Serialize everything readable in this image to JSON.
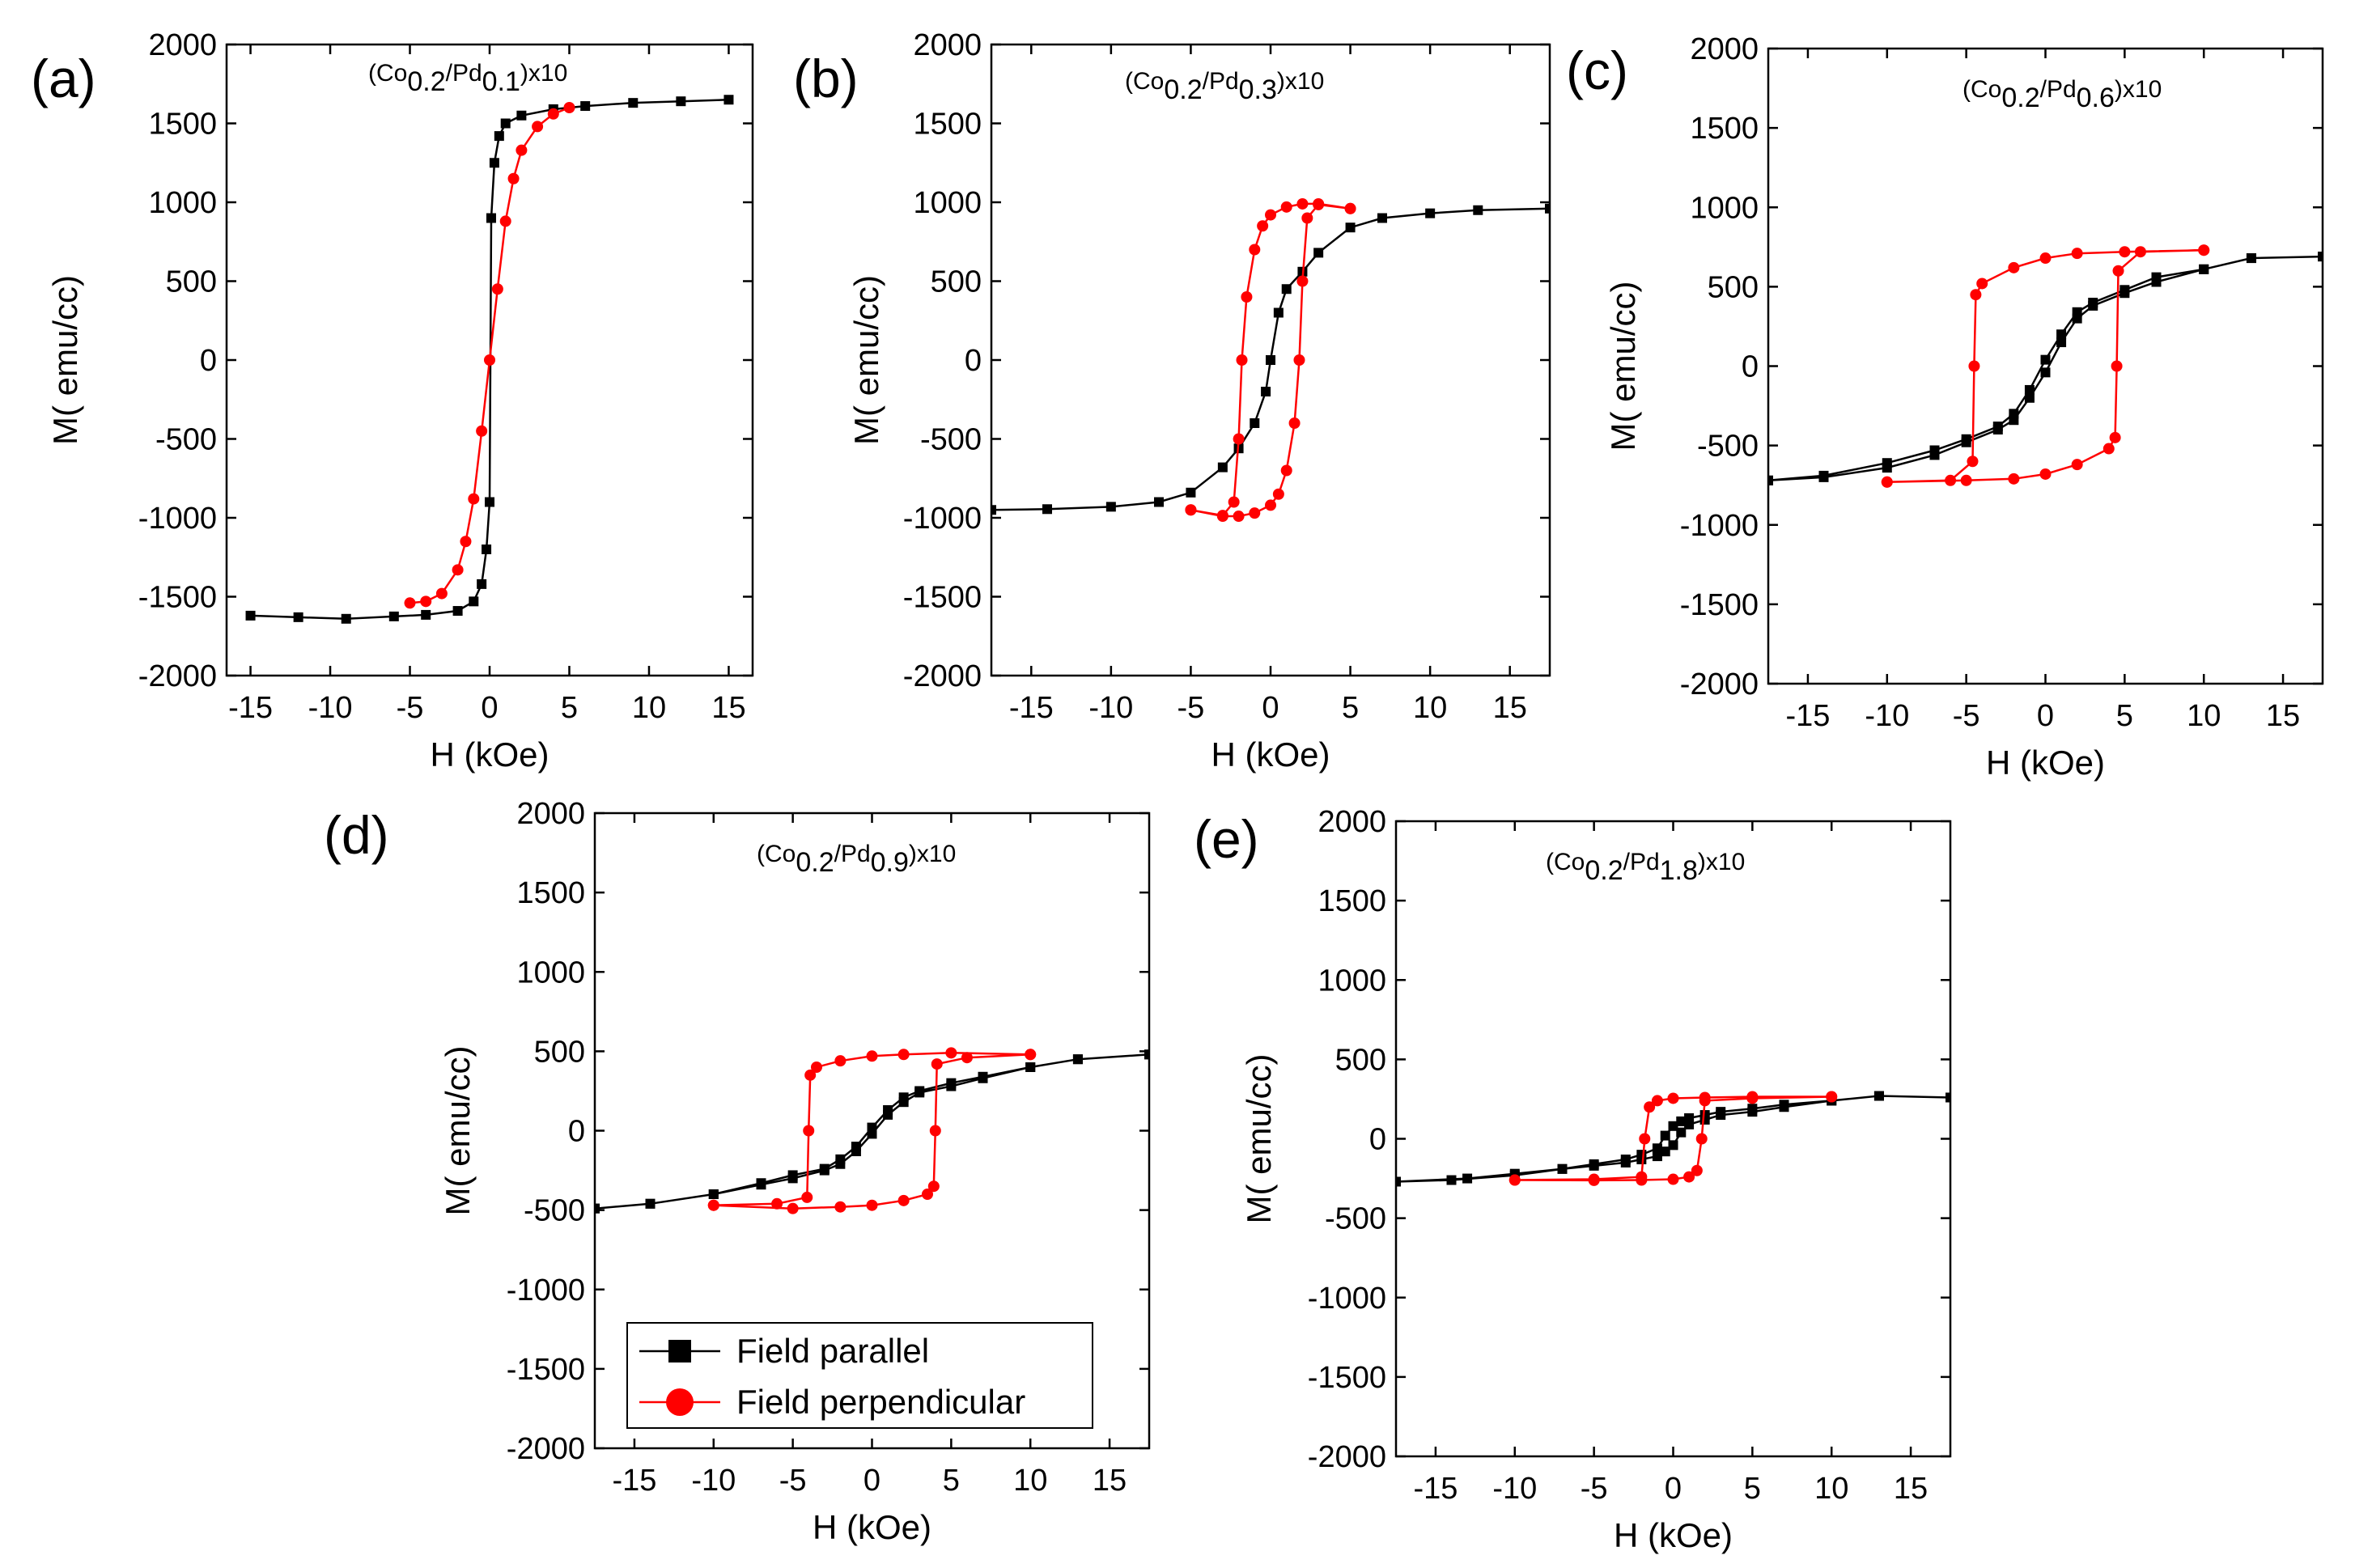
{
  "chart_data": [
    {
      "type": "scatter",
      "panel_label": "(a)",
      "annotation": {
        "prefix": "(Co",
        "sub1": "0.2",
        "mid": "/Pd",
        "sub2": "0.1",
        "suffix": ")x10"
      },
      "xlabel": "H (kOe)",
      "ylabel": "M( emu/cc)",
      "xlim": [
        -16.5,
        16.5
      ],
      "ylim": [
        -2000,
        2000
      ],
      "xticks": [
        -15,
        -10,
        -5,
        0,
        5,
        10,
        15
      ],
      "xtick_labels": [
        "-15",
        "-10",
        "-5",
        "0",
        "5",
        "10",
        "15"
      ],
      "yticks": [
        -2000,
        -1500,
        -1000,
        -500,
        0,
        500,
        1000,
        1500,
        2000
      ],
      "ytick_labels": [
        "-2000",
        "-1500",
        "-1000",
        "-500",
        "0",
        "500",
        "1000",
        "1500",
        "2000"
      ],
      "series": [
        {
          "name": "Field parallel",
          "color": "#000000",
          "marker": "square",
          "x": [
            -15,
            -12,
            -9,
            -6,
            -4,
            -2,
            -1,
            -0.5,
            -0.2,
            0,
            0.1,
            0.3,
            0.6,
            1,
            2,
            4,
            6,
            9,
            12,
            15
          ],
          "y": [
            -1620,
            -1630,
            -1640,
            -1625,
            -1615,
            -1590,
            -1530,
            -1420,
            -1200,
            -900,
            900,
            1250,
            1420,
            1500,
            1550,
            1590,
            1610,
            1630,
            1640,
            1650
          ]
        },
        {
          "name": "Field perpendicular",
          "color": "#ff0000",
          "marker": "circle",
          "x": [
            -5,
            -4,
            -3,
            -2,
            -1.5,
            -1,
            -0.5,
            0,
            0.5,
            1,
            1.5,
            2,
            3,
            4,
            5
          ],
          "y": [
            -1540,
            -1530,
            -1480,
            -1330,
            -1150,
            -880,
            -450,
            0,
            450,
            880,
            1150,
            1330,
            1480,
            1560,
            1600
          ]
        }
      ]
    },
    {
      "type": "scatter",
      "panel_label": "(b)",
      "annotation": {
        "prefix": "(Co",
        "sub1": "0.2",
        "mid": "/Pd",
        "sub2": "0.3",
        "suffix": ")x10"
      },
      "xlabel": "H (kOe)",
      "ylabel": "M( emu/cc)",
      "xlim": [
        -17.5,
        17.5
      ],
      "ylim": [
        -2000,
        2000
      ],
      "xticks": [
        -15,
        -10,
        -5,
        0,
        5,
        10,
        15
      ],
      "xtick_labels": [
        "-15",
        "-10",
        "-5",
        "0",
        "5",
        "10",
        "15"
      ],
      "yticks": [
        -2000,
        -1500,
        -1000,
        -500,
        0,
        500,
        1000,
        1500,
        2000
      ],
      "ytick_labels": [
        "-2000",
        "-1500",
        "-1000",
        "-500",
        "0",
        "500",
        "1000",
        "1500",
        "2000"
      ],
      "series": [
        {
          "name": "Field parallel",
          "color": "#000000",
          "marker": "square",
          "x": [
            -17.5,
            -14,
            -10,
            -7,
            -5,
            -3,
            -2,
            -1,
            -0.3,
            0,
            0.5,
            1,
            2,
            3,
            5,
            7,
            10,
            13,
            17.5
          ],
          "y": [
            -950,
            -945,
            -930,
            -900,
            -840,
            -680,
            -560,
            -400,
            -200,
            0,
            300,
            450,
            560,
            680,
            840,
            900,
            930,
            950,
            960
          ]
        },
        {
          "name": "Field perpendicular",
          "color": "#ff0000",
          "marker": "circle",
          "x": [
            -5,
            -3,
            -2.3,
            -2,
            -1.8,
            -1.5,
            -1,
            -0.5,
            0,
            1,
            2,
            3,
            5,
            5,
            3,
            2.3,
            2,
            1.8,
            1.5,
            1,
            0.5,
            0,
            -1,
            -2,
            -3,
            -5
          ],
          "y": [
            -950,
            -985,
            -900,
            -500,
            0,
            400,
            700,
            850,
            920,
            970,
            990,
            990,
            960,
            960,
            985,
            900,
            500,
            0,
            -400,
            -700,
            -850,
            -920,
            -970,
            -990,
            -990,
            -950
          ]
        }
      ]
    },
    {
      "type": "scatter",
      "panel_label": "(c)",
      "annotation": {
        "prefix": "(Co",
        "sub1": "0.2",
        "mid": "/Pd",
        "sub2": "0.6",
        "suffix": ")x10"
      },
      "xlabel": "H (kOe)",
      "ylabel": "M( emu/cc)",
      "xlim": [
        -17.5,
        17.5
      ],
      "ylim": [
        -2000,
        2000
      ],
      "xticks": [
        -15,
        -10,
        -5,
        0,
        5,
        10,
        15
      ],
      "xtick_labels": [
        "-15",
        "-10",
        "-5",
        "0",
        "5",
        "10",
        "15"
      ],
      "yticks": [
        -2000,
        -1500,
        -1000,
        -500,
        0,
        500,
        1000,
        1500,
        2000
      ],
      "ytick_labels": [
        "-2000",
        "-1500",
        "-1000",
        "-500",
        "0",
        "500",
        "1000",
        "1500",
        "2000"
      ],
      "series": [
        {
          "name": "Field parallel",
          "color": "#000000",
          "marker": "square",
          "x": [
            -17.5,
            -14,
            -10,
            -7,
            -5,
            -3,
            -2,
            -1,
            0,
            1,
            2,
            3,
            5,
            7,
            10,
            13,
            17.5,
            17.5,
            13,
            10,
            7,
            5,
            3,
            2,
            1,
            0,
            -1,
            -2,
            -3,
            -5,
            -7,
            -10,
            -14,
            -17.5
          ],
          "y": [
            -720,
            -700,
            -640,
            -560,
            -480,
            -400,
            -340,
            -200,
            -40,
            150,
            300,
            380,
            460,
            530,
            610,
            680,
            690,
            690,
            680,
            610,
            560,
            480,
            400,
            340,
            200,
            40,
            -150,
            -300,
            -380,
            -460,
            -530,
            -610,
            -690,
            -720
          ]
        },
        {
          "name": "Field perpendicular",
          "color": "#ff0000",
          "marker": "circle",
          "x": [
            -10,
            -6,
            -4.6,
            -4.5,
            -4.4,
            -4,
            -2,
            0,
            2,
            5,
            10,
            10,
            6,
            4.6,
            4.5,
            4.4,
            4,
            2,
            0,
            -2,
            -5,
            -10
          ],
          "y": [
            -730,
            -720,
            -600,
            0,
            450,
            520,
            620,
            680,
            710,
            720,
            730,
            730,
            720,
            600,
            0,
            -450,
            -520,
            -620,
            -680,
            -710,
            -720,
            -730
          ]
        }
      ]
    },
    {
      "type": "scatter",
      "panel_label": "(d)",
      "annotation": {
        "prefix": "(Co",
        "sub1": "0.2",
        "mid": "/Pd",
        "sub2": "0.9",
        "suffix": ")x10"
      },
      "xlabel": "H (kOe)",
      "ylabel": "M( emu/cc)",
      "xlim": [
        -17.5,
        17.5
      ],
      "ylim": [
        -2000,
        2000
      ],
      "xticks": [
        -15,
        -10,
        -5,
        0,
        5,
        10,
        15
      ],
      "xtick_labels": [
        "-15",
        "-10",
        "-5",
        "0",
        "5",
        "10",
        "15"
      ],
      "yticks": [
        -2000,
        -1500,
        -1000,
        -500,
        0,
        500,
        1000,
        1500,
        2000
      ],
      "ytick_labels": [
        "-2000",
        "-1500",
        "-1000",
        "-500",
        "0",
        "500",
        "1000",
        "1500",
        "2000"
      ],
      "series": [
        {
          "name": "Field parallel",
          "color": "#000000",
          "marker": "square",
          "x": [
            -17.5,
            -14,
            -10,
            -7,
            -5,
            -3,
            -2,
            -1,
            0,
            1,
            2,
            3,
            5,
            7,
            10,
            13,
            17.5,
            17.5,
            13,
            10,
            7,
            5,
            3,
            2,
            1,
            0,
            -1,
            -2,
            -3,
            -5,
            -7,
            -10,
            -14,
            -17.5
          ],
          "y": [
            -490,
            -460,
            -400,
            -330,
            -280,
            -240,
            -180,
            -100,
            20,
            130,
            210,
            250,
            300,
            340,
            400,
            450,
            480,
            480,
            450,
            400,
            330,
            280,
            240,
            180,
            100,
            -20,
            -130,
            -210,
            -250,
            -300,
            -340,
            -400,
            -460,
            -490
          ]
        },
        {
          "name": "Field perpendicular",
          "color": "#ff0000",
          "marker": "circle",
          "x": [
            -10,
            -6,
            -4.1,
            -4,
            -3.9,
            -3.5,
            -2,
            0,
            2,
            5,
            10,
            10,
            6,
            4.1,
            4,
            3.9,
            3.5,
            2,
            0,
            -2,
            -5,
            -10
          ],
          "y": [
            -470,
            -460,
            -420,
            0,
            350,
            400,
            440,
            470,
            480,
            490,
            480,
            480,
            460,
            420,
            0,
            -350,
            -400,
            -440,
            -470,
            -480,
            -490,
            -470
          ]
        }
      ]
    },
    {
      "type": "scatter",
      "panel_label": "(e)",
      "annotation": {
        "prefix": "(Co",
        "sub1": "0.2",
        "mid": "/Pd",
        "sub2": "1.8",
        "suffix": ")x10"
      },
      "xlabel": "H (kOe)",
      "ylabel": "M( emu/cc)",
      "xlim": [
        -17.5,
        17.5
      ],
      "ylim": [
        -2000,
        2000
      ],
      "xticks": [
        -15,
        -10,
        -5,
        0,
        5,
        10,
        15
      ],
      "xtick_labels": [
        "-15",
        "-10",
        "-5",
        "0",
        "5",
        "10",
        "15"
      ],
      "yticks": [
        -2000,
        -1500,
        -1000,
        -500,
        0,
        500,
        1000,
        1500,
        2000
      ],
      "ytick_labels": [
        "-2000",
        "-1500",
        "-1000",
        "-500",
        "0",
        "500",
        "1000",
        "1500",
        "2000"
      ],
      "series": [
        {
          "name": "Field parallel",
          "color": "#000000",
          "marker": "square",
          "x": [
            -17.5,
            -14,
            -10,
            -7,
            -5,
            -3,
            -2,
            -1,
            -0.5,
            0,
            0.5,
            1,
            2,
            3,
            5,
            7,
            10,
            13,
            17.5,
            17.5,
            13,
            10,
            7,
            5,
            3,
            2,
            1,
            0.5,
            0,
            -0.5,
            -1,
            -2,
            -3,
            -5,
            -7,
            -10,
            -13,
            -17.5
          ],
          "y": [
            -270,
            -260,
            -230,
            -190,
            -160,
            -130,
            -100,
            -60,
            20,
            80,
            110,
            130,
            150,
            170,
            190,
            215,
            240,
            270,
            260,
            260,
            270,
            240,
            200,
            170,
            150,
            120,
            90,
            40,
            -40,
            -80,
            -110,
            -130,
            -150,
            -170,
            -190,
            -220,
            -250,
            -270
          ]
        },
        {
          "name": "Field perpendicular",
          "color": "#ff0000",
          "marker": "circle",
          "x": [
            -10,
            -5,
            -2,
            -1.8,
            -1.5,
            -1,
            0,
            2,
            5,
            10,
            10,
            5,
            2,
            1.8,
            1.5,
            1,
            0,
            -2,
            -5,
            -10
          ],
          "y": [
            -260,
            -255,
            -240,
            0,
            200,
            240,
            255,
            260,
            265,
            265,
            265,
            255,
            240,
            0,
            -200,
            -240,
            -255,
            -260,
            -262,
            -260
          ]
        }
      ]
    }
  ],
  "legend": {
    "items": [
      {
        "label": "Field parallel",
        "color": "#000000",
        "marker": "square"
      },
      {
        "label": "Field perpendicular",
        "color": "#ff0000",
        "marker": "circle"
      }
    ]
  }
}
